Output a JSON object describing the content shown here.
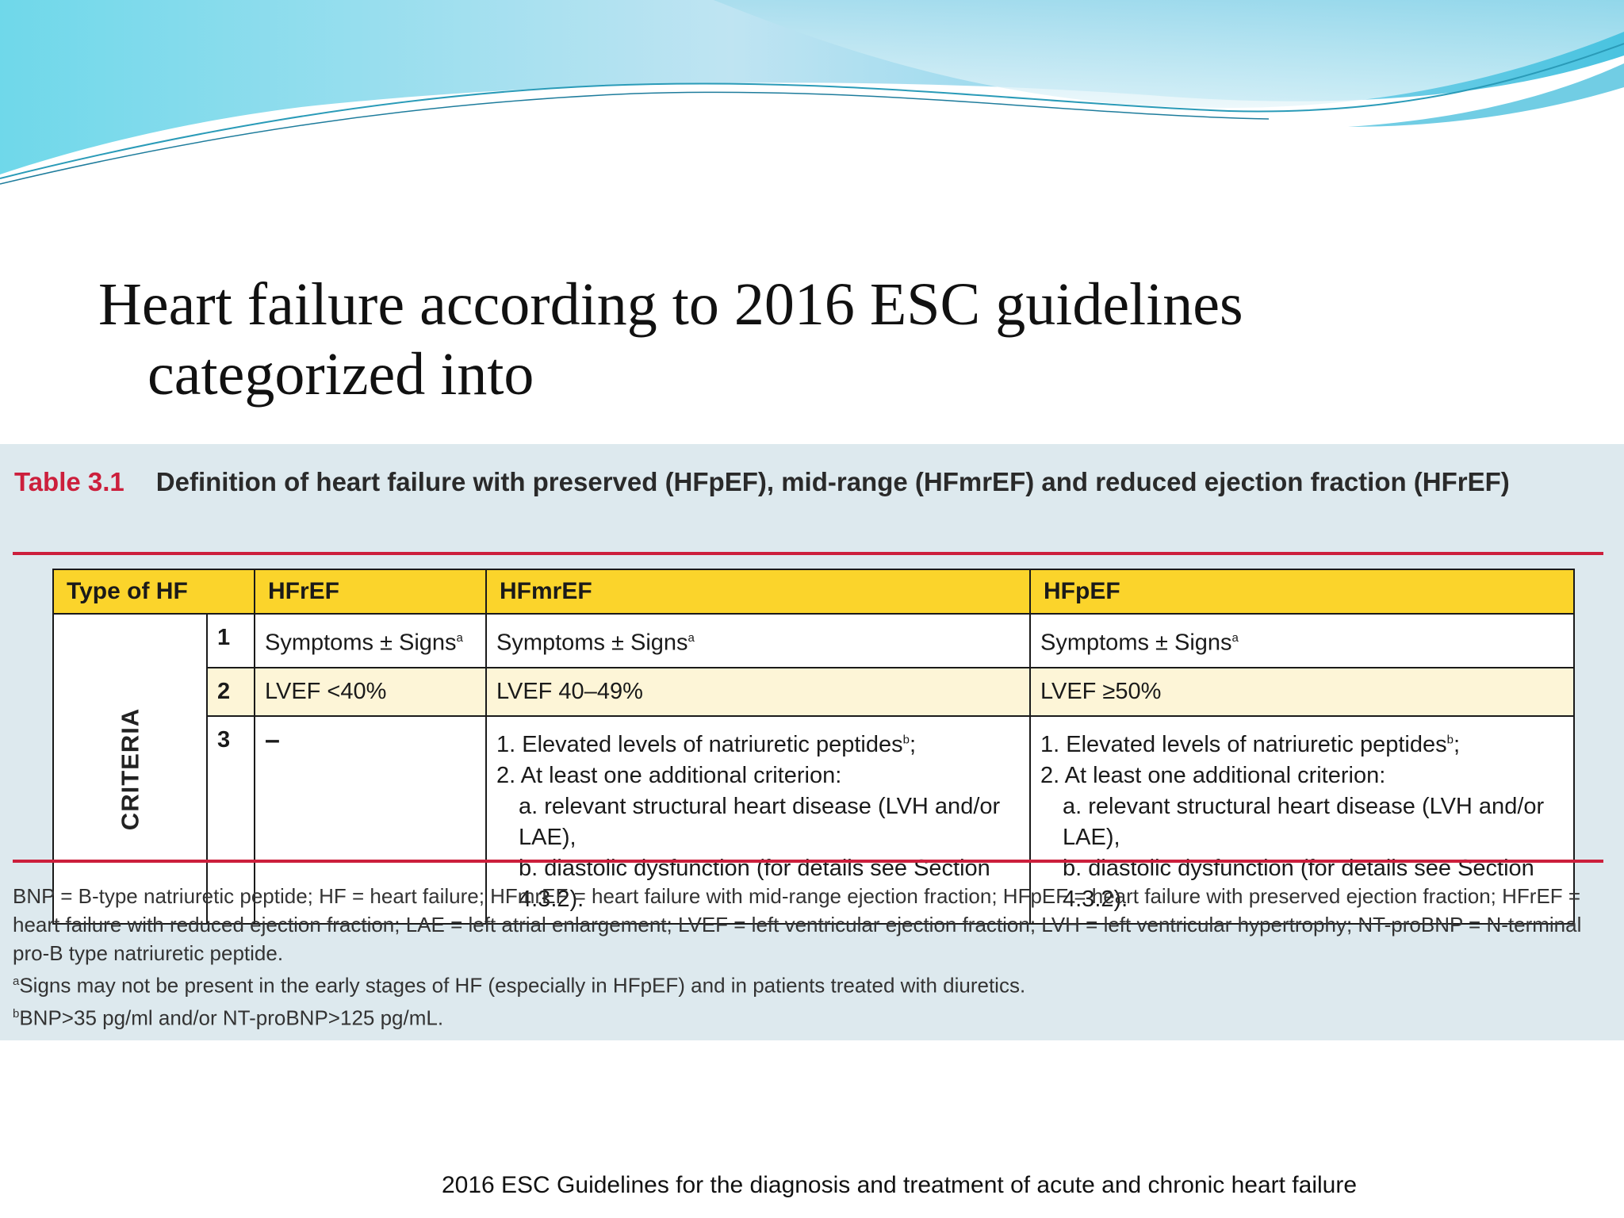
{
  "slide": {
    "title_line1": "Heart failure according to 2016 ESC guidelines",
    "title_line2": "categorized into",
    "source": "2016 ESC Guidelines for the diagnosis and treatment of acute and chronic heart failure"
  },
  "table": {
    "number": "Table 3.1",
    "caption": "Definition of heart failure with preserved (HFpEF), mid-range (HFmrEF) and reduced ejection fraction (HFrEF)",
    "headers": [
      "Type of HF",
      "HFrEF",
      "HFmrEF",
      "HFpEF"
    ],
    "criteria_label": "CRITERIA",
    "rows": [
      {
        "num": "1",
        "hfref": "Symptoms ± Signs",
        "hfmref": "Symptoms ± Signs",
        "hfpef": "Symptoms ± Signs",
        "sup": "a"
      },
      {
        "num": "2",
        "hfref": "LVEF <40%",
        "hfmref": "LVEF 40–49%",
        "hfpef": "LVEF ≥50%"
      },
      {
        "num": "3",
        "hfref": "–",
        "list_item1": "1. Elevated levels of natriuretic peptides",
        "list_item1_sup": "b",
        "list_item1_end": ";",
        "list_item2": "2. At least one additional criterion:",
        "list_item2a": "a. relevant structural heart disease (LVH and/or LAE),",
        "list_item2b": "b. diastolic dysfunction (for details see Section 4.3.2)."
      }
    ]
  },
  "footnotes": {
    "abbreviations": "BNP = B-type natriuretic peptide; HF = heart failure; HFmrEF = heart failure with mid-range ejection fraction; HFpEF = heart failure with preserved ejection fraction; HFrEF = heart failure with reduced ejection fraction; LAE = left atrial enlargement; LVEF = left ventricular ejection fraction; LVH = left ventricular hypertrophy; NT-proBNP = N-terminal pro-B type natriuretic peptide.",
    "a_mark": "a",
    "a_text": "Signs may not be present in the early stages of HF (especially in HFpEF) and in patients treated with diuretics.",
    "b_mark": "b",
    "b_text": "BNP>35 pg/ml and/or NT-proBNP>125 pg/mL."
  },
  "colors": {
    "accent_red": "#cc1f3c",
    "header_yellow": "#fbd42b",
    "row_highlight": "#fdf5d7",
    "panel_bg": "#dde9ee",
    "wave_cyan": "#5fd3e6"
  }
}
